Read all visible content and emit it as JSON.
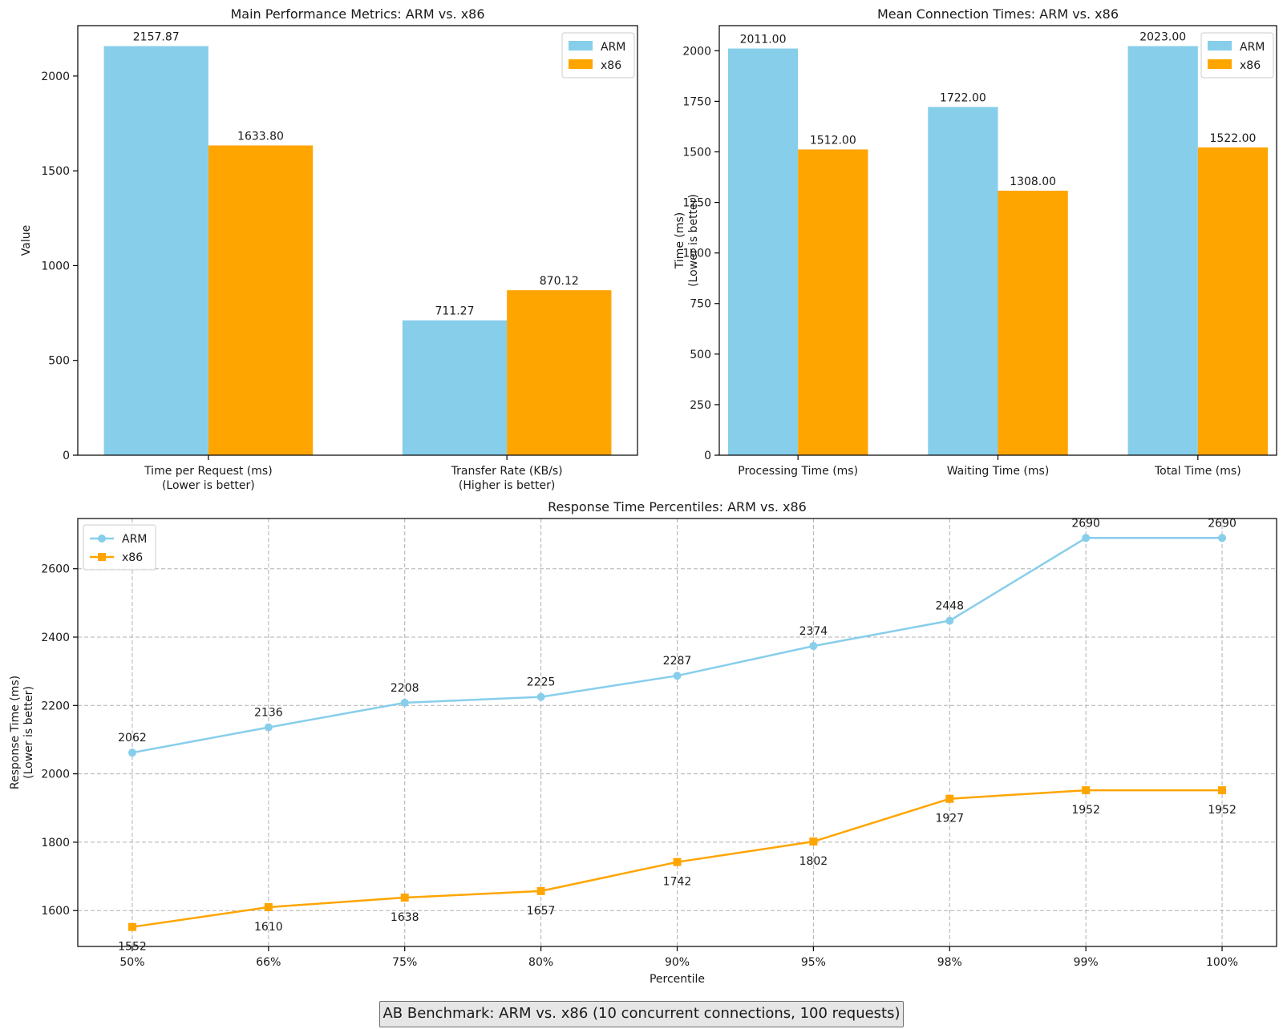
{
  "colors": {
    "arm": "#87CEEB",
    "x86": "#FFA500",
    "axis": "#000000",
    "grid": "#b0b0b0"
  },
  "chart_data": [
    {
      "id": "main",
      "type": "bar",
      "title": "Main Performance Metrics: ARM vs. x86",
      "ylabel": "Value",
      "xlabel": "",
      "categories": [
        [
          "Time per Request (ms)",
          "(Lower is better)"
        ],
        [
          "Transfer Rate (KB/s)",
          "(Higher is better)"
        ]
      ],
      "series": [
        {
          "name": "ARM",
          "values": [
            2157.87,
            711.27
          ],
          "labels": [
            "2157.87",
            "711.27"
          ]
        },
        {
          "name": "x86",
          "values": [
            1633.8,
            870.12
          ],
          "labels": [
            "1633.80",
            "870.12"
          ]
        }
      ],
      "ylim": [
        0,
        2265.76
      ],
      "yticks": [
        0,
        500,
        1000,
        1500,
        2000
      ],
      "legend": "top-right"
    },
    {
      "id": "conn",
      "type": "bar",
      "title": "Mean Connection Times: ARM vs. x86",
      "ylabel": [
        "Time (ms)",
        "(Lower is better)"
      ],
      "xlabel": "",
      "categories": [
        [
          "Processing Time (ms)"
        ],
        [
          "Waiting Time (ms)"
        ],
        [
          "Total Time (ms)"
        ]
      ],
      "series": [
        {
          "name": "ARM",
          "values": [
            2011,
            1722,
            2023
          ],
          "labels": [
            "2011.00",
            "1722.00",
            "2023.00"
          ]
        },
        {
          "name": "x86",
          "values": [
            1512,
            1308,
            1522
          ],
          "labels": [
            "1512.00",
            "1308.00",
            "1522.00"
          ]
        }
      ],
      "ylim": [
        0,
        2124.15
      ],
      "yticks": [
        0,
        250,
        500,
        750,
        1000,
        1250,
        1500,
        1750,
        2000
      ],
      "legend": "top-right"
    },
    {
      "id": "pct",
      "type": "line",
      "title": "Response Time Percentiles: ARM vs. x86",
      "xlabel": "Percentile",
      "ylabel": [
        "Response Time (ms)",
        "(Lower is better)"
      ],
      "categories": [
        "50%",
        "66%",
        "75%",
        "80%",
        "90%",
        "95%",
        "98%",
        "99%",
        "100%"
      ],
      "series": [
        {
          "name": "ARM",
          "marker": "circle",
          "values": [
            2062,
            2136,
            2208,
            2225,
            2287,
            2374,
            2448,
            2690,
            2690
          ],
          "labels": [
            "2062",
            "2136",
            "2208",
            "2225",
            "2287",
            "2374",
            "2448",
            "2690",
            "2690"
          ]
        },
        {
          "name": "x86",
          "marker": "square",
          "values": [
            1552,
            1610,
            1638,
            1657,
            1742,
            1802,
            1927,
            1952,
            1952
          ],
          "labels": [
            "1552",
            "1610",
            "1638",
            "1657",
            "1742",
            "1802",
            "1927",
            "1952",
            "1952"
          ]
        }
      ],
      "ylim": [
        1495,
        2747
      ],
      "yticks": [
        1600,
        1800,
        2000,
        2200,
        2400,
        2600
      ],
      "grid": true,
      "legend": "top-left"
    }
  ],
  "footer": {
    "caption": "AB Benchmark: ARM vs. x86 (10 concurrent connections, 100 requests)"
  }
}
